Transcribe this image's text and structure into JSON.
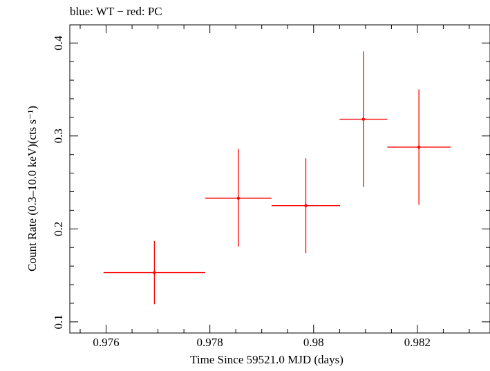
{
  "chart_data": {
    "type": "scatter",
    "title": "blue: WT − red: PC",
    "xlabel": "Time Since 59521.0 MJD (days)",
    "ylabel": "Count Rate (0.3–10.0 keV)(cts s⁻¹)",
    "xlim": [
      0.9753,
      0.9834
    ],
    "ylim": [
      0.088,
      0.4195
    ],
    "xticks": [
      0.976,
      0.978,
      0.98,
      0.982
    ],
    "xtick_labels": [
      "0.976",
      "0.978",
      "0.98",
      "0.982"
    ],
    "yticks": [
      0.1,
      0.2,
      0.3,
      0.4
    ],
    "ytick_labels": [
      "0.1",
      "0.2",
      "0.3",
      "0.4"
    ],
    "grid": false,
    "legend": "none",
    "series": [
      {
        "color": "#ff0000",
        "points": [
          {
            "x": 0.97693,
            "xerr_low": 0.00098,
            "xerr_high": 0.00098,
            "y": 0.153,
            "yerr_low": 0.034,
            "yerr_high": 0.034
          },
          {
            "x": 0.97855,
            "xerr_low": 0.00064,
            "xerr_high": 0.00064,
            "y": 0.233,
            "yerr_low": 0.052,
            "yerr_high": 0.053
          },
          {
            "x": 0.97985,
            "xerr_low": 0.00066,
            "xerr_high": 0.00066,
            "y": 0.225,
            "yerr_low": 0.051,
            "yerr_high": 0.051
          },
          {
            "x": 0.98096,
            "xerr_low": 0.00046,
            "xerr_high": 0.00046,
            "y": 0.318,
            "yerr_low": 0.073,
            "yerr_high": 0.073
          },
          {
            "x": 0.98203,
            "xerr_low": 0.00061,
            "xerr_high": 0.00061,
            "y": 0.288,
            "yerr_low": 0.062,
            "yerr_high": 0.062
          }
        ]
      }
    ]
  }
}
